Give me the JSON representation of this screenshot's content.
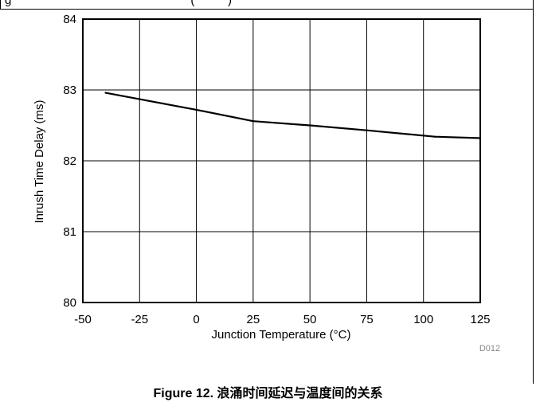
{
  "header": {
    "clipped_text": "g                                                      (          )"
  },
  "chart_data": {
    "type": "line",
    "xlabel": "Junction Temperature (°C)",
    "ylabel": "Inrush Time Delay (ms)",
    "xlim": [
      -50,
      125
    ],
    "ylim": [
      80,
      84
    ],
    "xticks": [
      -50,
      -25,
      0,
      25,
      50,
      75,
      100,
      125
    ],
    "yticks": [
      80,
      81,
      82,
      83,
      84
    ],
    "grid": true,
    "series": [
      {
        "x": [
          -40,
          -25,
          0,
          25,
          50,
          75,
          105,
          125
        ],
        "y": [
          82.96,
          82.87,
          82.72,
          82.56,
          82.5,
          82.43,
          82.34,
          82.32
        ]
      }
    ],
    "annotation": "D012",
    "line_color": "#000000"
  },
  "caption": "Figure 12. 浪涌时间延迟与温度间的关系"
}
